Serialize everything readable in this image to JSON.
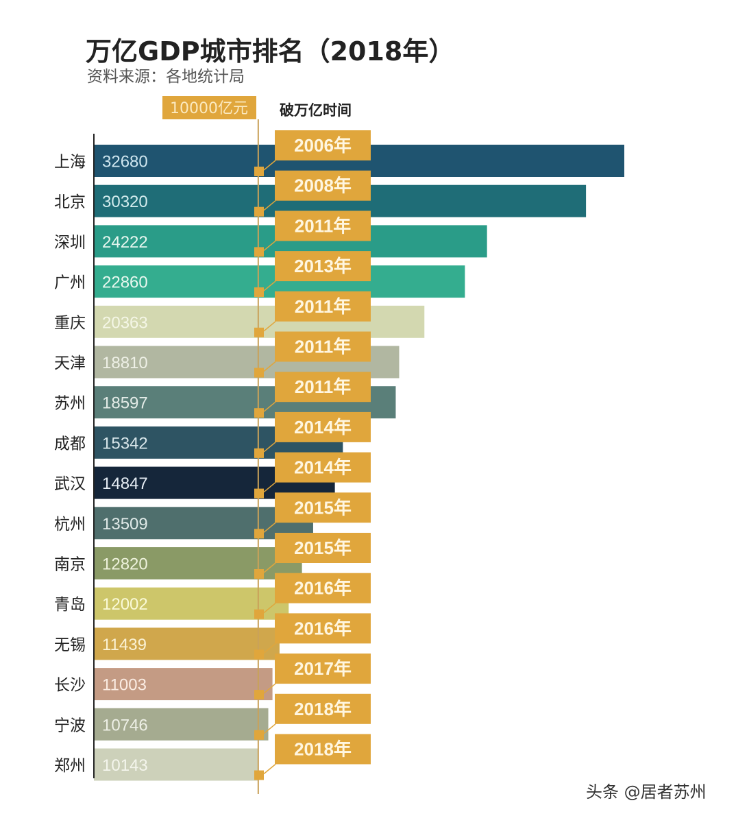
{
  "chart_data": {
    "type": "bar",
    "orientation": "horizontal",
    "title": "万亿GDP城市排名（2018年）",
    "subtitle": "资料来源：各地统计局",
    "reference_line": {
      "value": 10000,
      "label": "10000亿元"
    },
    "annotation_header": "破万亿时间",
    "unit": "亿元",
    "categories": [
      "上海",
      "北京",
      "深圳",
      "广州",
      "重庆",
      "天津",
      "苏州",
      "成都",
      "武汉",
      "杭州",
      "南京",
      "青岛",
      "无锡",
      "长沙",
      "宁波",
      "郑州"
    ],
    "values": [
      32680,
      30320,
      24222,
      22860,
      20363,
      18810,
      18597,
      15342,
      14847,
      13509,
      12820,
      12002,
      11439,
      11003,
      10746,
      10143
    ],
    "value_labels": [
      "32680",
      "30320",
      "24222",
      "22860",
      "20363",
      "18810",
      "18597",
      "15342",
      "14847",
      "13509",
      "12820",
      "12002",
      "11439",
      "11003",
      "10746",
      "10143"
    ],
    "milestone_years": [
      "2006年",
      "2008年",
      "2011年",
      "2013年",
      "2011年",
      "2011年",
      "2011年",
      "2014年",
      "2014年",
      "2015年",
      "2015年",
      "2016年",
      "2016年",
      "2017年",
      "2018年",
      "2018年"
    ],
    "bar_colors": [
      "#1f5470",
      "#1f6d77",
      "#2a9c88",
      "#34ad8f",
      "#d3d8b0",
      "#b1b7a1",
      "#5a7f79",
      "#2e5463",
      "#15263a",
      "#4f6f6d",
      "#8a9a66",
      "#cdc66a",
      "#d0a74c",
      "#c49b84",
      "#a5ab90",
      "#cdd1ba"
    ],
    "value_text_colors": [
      "#cfe6ef",
      "#d4ecee",
      "#e6f6ef",
      "#eaf8f0",
      "#f4f6e6",
      "#eef0e6",
      "#e4ece8",
      "#d8e6ea",
      "#e6edf4",
      "#e0eae8",
      "#eef2dc",
      "#fafad8",
      "#fbf2d4",
      "#fbece2",
      "#eef0e6",
      "#f4f5ec"
    ],
    "xlim": [
      0,
      34000
    ]
  },
  "accent_color": "#e0a63c",
  "watermark": "头条 @居者苏州"
}
